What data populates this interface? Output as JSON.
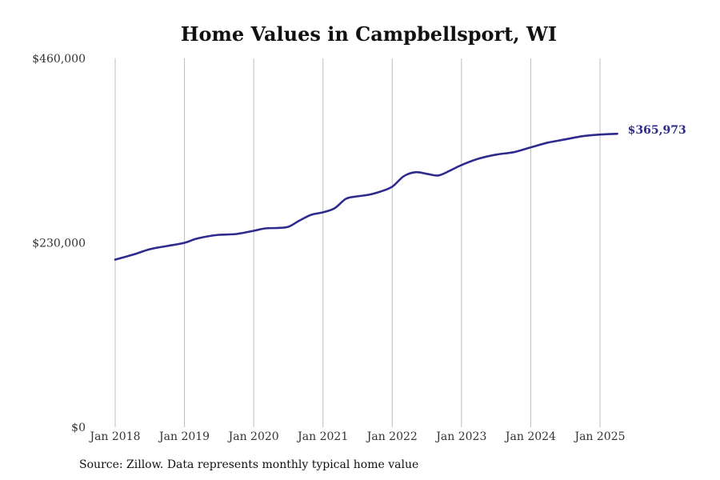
{
  "chart_data": {
    "type": "line",
    "title": "Home Values in Campbellsport, WI",
    "xlabel": "",
    "ylabel": "",
    "ylim": [
      0,
      460000
    ],
    "y_ticks": [
      0,
      230000,
      460000
    ],
    "y_tick_labels": [
      "$0",
      "$230,000",
      "$460,000"
    ],
    "x_range": [
      "2018-01",
      "2025-12"
    ],
    "x_ticks": [
      "2018-01",
      "2019-01",
      "2020-01",
      "2021-01",
      "2022-01",
      "2023-01",
      "2024-01",
      "2025-01"
    ],
    "x_tick_labels": [
      "Jan 2018",
      "Jan 2019",
      "Jan 2020",
      "Jan 2021",
      "Jan 2022",
      "Jan 2023",
      "Jan 2024",
      "Jan 2025"
    ],
    "grid": "vertical",
    "line_color": "#2e2a8e",
    "series": [
      {
        "x": [
          "2018-01",
          "2018-04",
          "2018-07",
          "2018-10",
          "2019-01",
          "2019-03",
          "2019-05",
          "2019-07",
          "2019-10",
          "2020-01",
          "2020-03",
          "2020-05",
          "2020-07",
          "2020-09",
          "2020-11",
          "2021-01",
          "2021-03",
          "2021-05",
          "2021-07",
          "2021-09",
          "2021-11",
          "2022-01",
          "2022-03",
          "2022-05",
          "2022-07",
          "2022-09",
          "2022-11",
          "2023-01",
          "2023-04",
          "2023-07",
          "2023-10",
          "2024-01",
          "2024-04",
          "2024-07",
          "2024-10",
          "2025-01",
          "2025-04"
        ],
        "y": [
          209000,
          215000,
          222000,
          226000,
          230000,
          235000,
          238000,
          240000,
          241000,
          245000,
          248000,
          248500,
          250000,
          258000,
          265000,
          268000,
          273000,
          285000,
          288000,
          290000,
          294000,
          300000,
          313000,
          318000,
          316000,
          314000,
          320000,
          327000,
          335000,
          340000,
          343000,
          349000,
          355000,
          359000,
          363000,
          365000,
          365973
        ]
      }
    ],
    "end_label": "$365,973",
    "source": "Source: Zillow. Data represents monthly typical home value"
  }
}
